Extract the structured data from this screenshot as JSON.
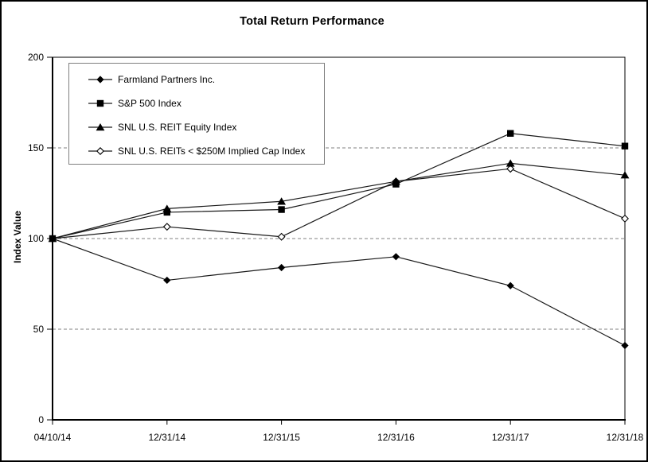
{
  "title": "Total Return Performance",
  "chart_data": {
    "type": "line",
    "title": "Total Return Performance",
    "xlabel": "",
    "ylabel": "Index Value",
    "ylim": [
      0,
      200
    ],
    "yticks": [
      0,
      50,
      100,
      150,
      200
    ],
    "gridlines_at": [
      50,
      100,
      150
    ],
    "grid_style": "dashed horizontal",
    "legend_position": "top-left inside plot",
    "background": "#ffffff",
    "line_color": "#1a1a1a",
    "grid_color": "#808080",
    "categories": [
      "04/10/14",
      "12/31/14",
      "12/31/15",
      "12/31/16",
      "12/31/17",
      "12/31/18"
    ],
    "series": [
      {
        "name": "Farmland Partners Inc.",
        "marker": "filled-diamond",
        "values": [
          100,
          77,
          84,
          90,
          74,
          41
        ]
      },
      {
        "name": "S&P 500 Index",
        "marker": "filled-square",
        "values": [
          100,
          114.5,
          116,
          130,
          158,
          151
        ]
      },
      {
        "name": "SNL U.S. REIT Equity Index",
        "marker": "filled-triangle",
        "values": [
          100,
          116.5,
          120.5,
          131.5,
          141.5,
          135
        ]
      },
      {
        "name": "SNL U.S. REITs < $250M Implied Cap Index",
        "marker": "open-diamond",
        "values": [
          100,
          106.5,
          101,
          131.5,
          138.5,
          111
        ]
      }
    ]
  }
}
